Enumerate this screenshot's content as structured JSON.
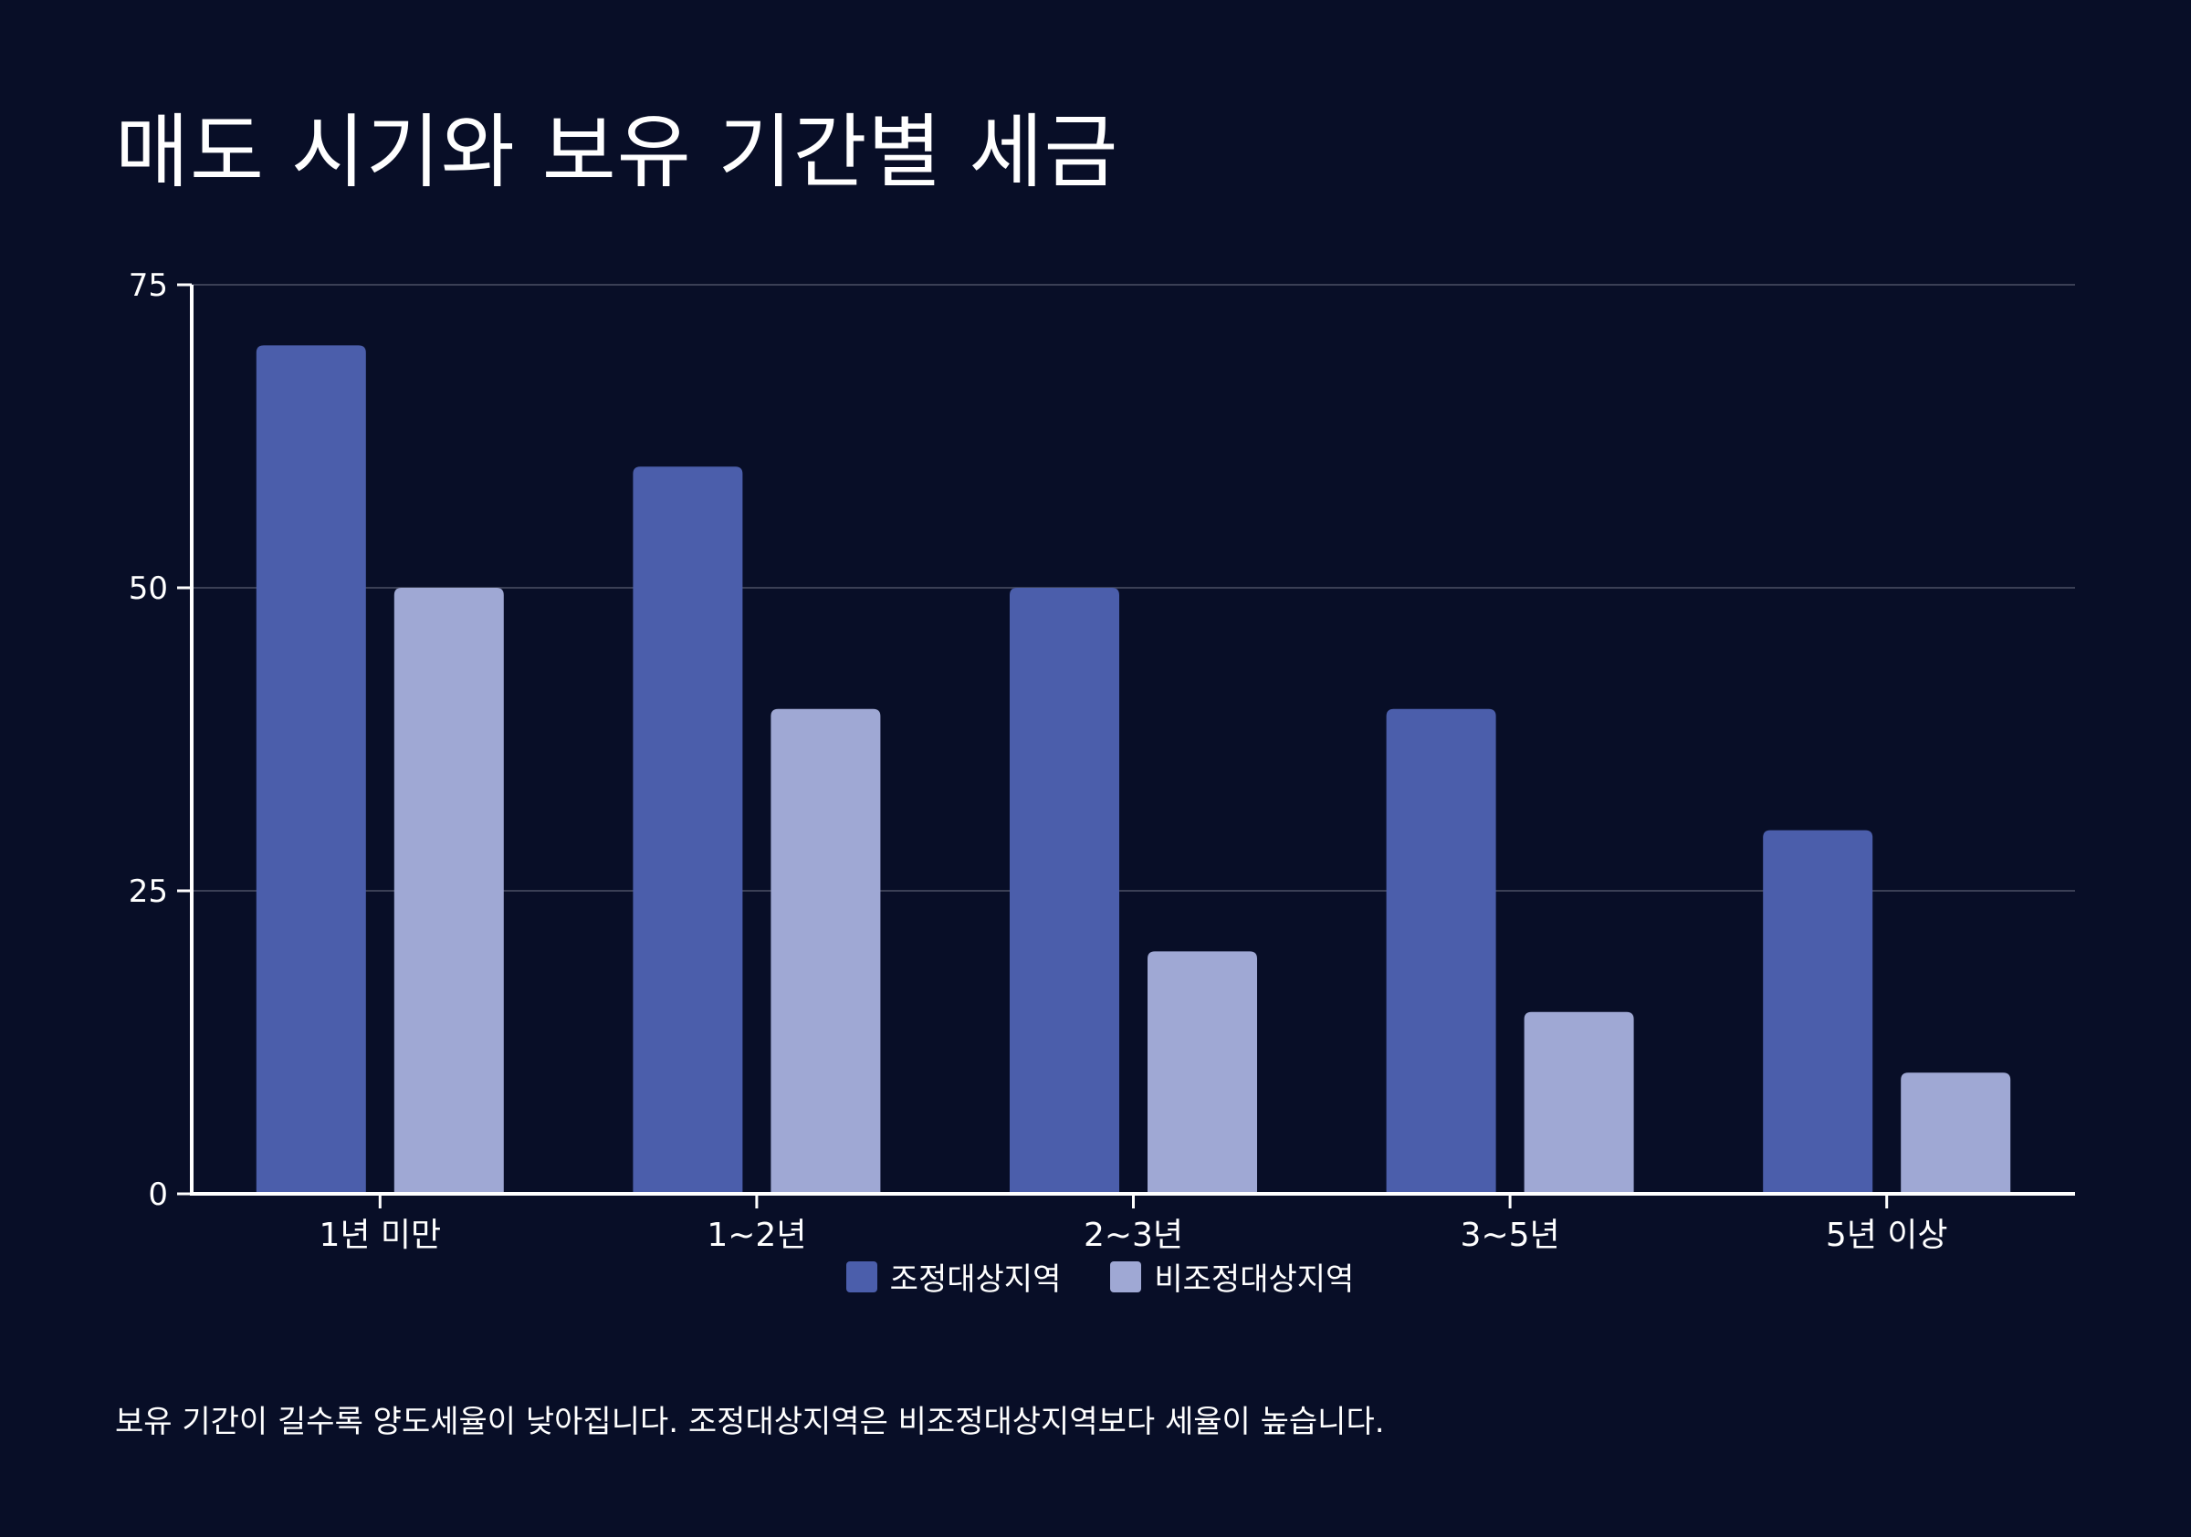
{
  "title": "매도 시기와 보유 기간별 세금",
  "caption": "보유 기간이 길수록 양도세율이 낮아집니다. 조정대상지역은 비조정대상지역보다 세율이 높습니다.",
  "colors": {
    "background": "#080e27",
    "series_1": "#4b5eab",
    "series_2": "#9fa8d4",
    "grid": "#3a3f55",
    "axis": "#ffffff"
  },
  "chart_data": {
    "type": "bar",
    "categories": [
      "1년 미만",
      "1~2년",
      "2~3년",
      "3~5년",
      "5년 이상"
    ],
    "series": [
      {
        "name": "조정대상지역",
        "values": [
          70,
          60,
          50,
          40,
          30
        ]
      },
      {
        "name": "비조정대상지역",
        "values": [
          50,
          40,
          20,
          15,
          10
        ]
      }
    ],
    "ylim": [
      0,
      75
    ],
    "yticks": [
      0,
      25,
      50,
      75
    ],
    "grid": true,
    "legend": "bottom-center"
  }
}
